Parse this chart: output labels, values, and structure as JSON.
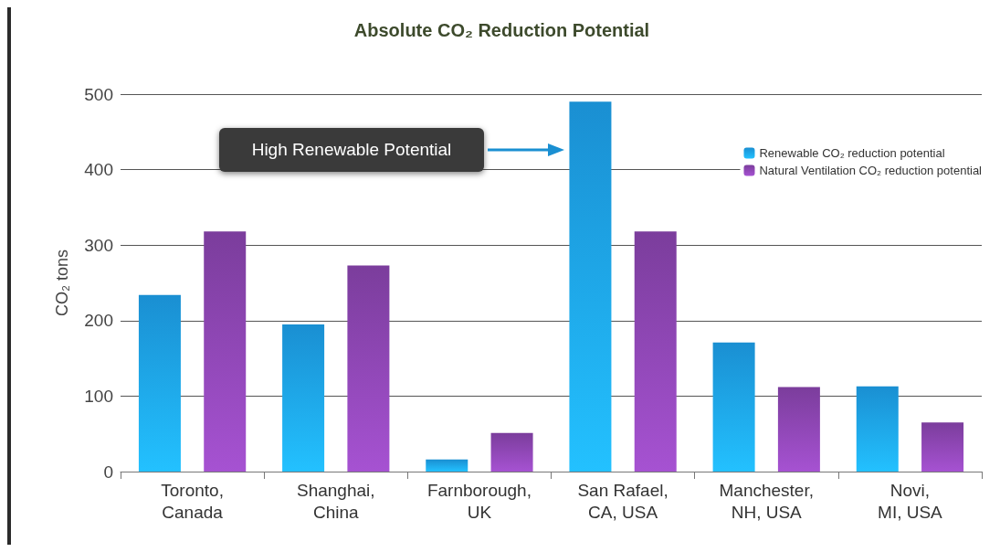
{
  "chart_data": {
    "type": "bar",
    "title": "Absolute CO₂ Reduction Potential",
    "ylabel": "CO₂ tons",
    "categories": [
      "Toronto,\nCanada",
      "Shanghai,\nChina",
      "Farnborough,\nUK",
      "San Rafael,\nCA, USA",
      "Manchester,\nNH, USA",
      "Novi,\nMI, USA"
    ],
    "series": [
      {
        "name": "Renewable CO₂ reduction potential",
        "color": "#1a8fd2",
        "values": [
          234,
          195,
          16,
          490,
          171,
          113
        ]
      },
      {
        "name": "Natural Ventilation CO₂ reduction potential",
        "color": "#7b3d9c",
        "values": [
          318,
          273,
          51,
          318,
          112,
          65
        ]
      }
    ],
    "ylim": [
      0,
      500
    ],
    "yticks": [
      0,
      100,
      200,
      300,
      400,
      500
    ],
    "grid": "y",
    "legend": "top right",
    "annotations": [
      "High Renewable Potential"
    ]
  }
}
